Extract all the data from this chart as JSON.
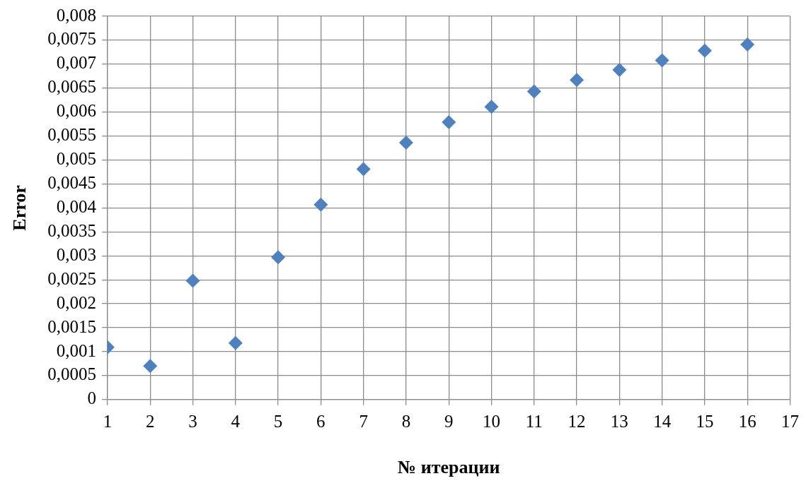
{
  "chart_data": {
    "type": "scatter",
    "xlabel": "№ итерации",
    "ylabel": "Error",
    "x": [
      1,
      2,
      3,
      4,
      5,
      6,
      7,
      8,
      9,
      10,
      11,
      12,
      13,
      14,
      15,
      16
    ],
    "series": [
      {
        "color": "#4f81bd",
        "values": [
          0.00109,
          0.0007,
          0.00248,
          0.00118,
          0.00297,
          0.00407,
          0.00481,
          0.00536,
          0.00579,
          0.00611,
          0.00643,
          0.00667,
          0.00688,
          0.00708,
          0.00728,
          0.00741
        ]
      }
    ],
    "xlim": [
      1,
      17
    ],
    "xticks": [
      1,
      2,
      3,
      4,
      5,
      6,
      7,
      8,
      9,
      10,
      11,
      12,
      13,
      14,
      15,
      16,
      17
    ],
    "ylim": [
      0,
      0.008
    ],
    "yticks": [
      0,
      {
        "value": 0.0005,
        "label": "0,0005"
      },
      {
        "value": 0.001,
        "label": "0,001"
      },
      {
        "value": 0.0015,
        "label": "0,0015"
      },
      {
        "value": 0.002,
        "label": "0,002"
      },
      {
        "value": 0.0025,
        "label": "0,0025"
      },
      {
        "value": 0.003,
        "label": "0,003"
      },
      {
        "value": 0.0035,
        "label": "0,0035"
      },
      {
        "value": 0.004,
        "label": "0,004"
      },
      {
        "value": 0.0045,
        "label": "0,0045"
      },
      {
        "value": 0.005,
        "label": "0,005"
      },
      {
        "value": 0.0055,
        "label": "0,0055"
      },
      {
        "value": 0.006,
        "label": "0,006"
      },
      {
        "value": 0.0065,
        "label": "0,0065"
      },
      {
        "value": 0.007,
        "label": "0,007"
      },
      {
        "value": 0.0075,
        "label": "0,0075"
      },
      {
        "value": 0.008,
        "label": "0,008"
      }
    ],
    "grid": true,
    "legend": false,
    "marker": "diamond"
  }
}
